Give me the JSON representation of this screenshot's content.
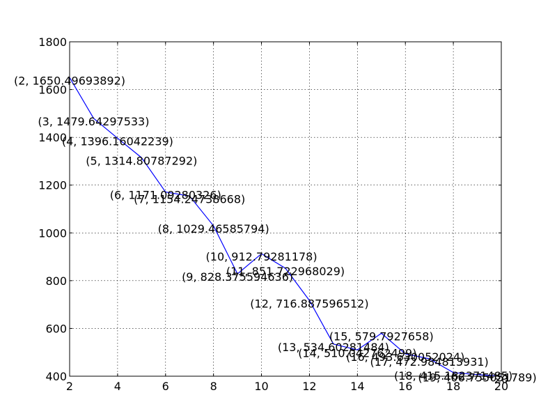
{
  "chart_data": {
    "type": "line",
    "title": "",
    "xlabel": "",
    "ylabel": "",
    "xlim": [
      2,
      20
    ],
    "ylim": [
      400,
      1800
    ],
    "xticks": [
      2,
      4,
      6,
      8,
      10,
      12,
      14,
      16,
      18,
      20
    ],
    "yticks": [
      400,
      600,
      800,
      1000,
      1200,
      1400,
      1600,
      1800
    ],
    "grid": true,
    "legend": "none",
    "line_color": "#0000ff",
    "series": [
      {
        "x": [
          2,
          3,
          4,
          5,
          6,
          7,
          8,
          9,
          10,
          11,
          12,
          13,
          14,
          15,
          16,
          17,
          18,
          19,
          20
        ],
        "y": [
          1650.49693892,
          1479.64297533,
          1396.16042239,
          1314.80787292,
          1171.09280326,
          1154.24738668,
          1029.46585794,
          828.375594636,
          912.79281178,
          851.722968029,
          716.887596512,
          534.60281484,
          510.042762499,
          579.7927658,
          493.630052024,
          472.984813931,
          415.182371485,
          406.755051789,
          400
        ]
      }
    ],
    "annotations": [
      {
        "x": 2,
        "y": 1650.49693892,
        "text": "(2, 1650.49693892)"
      },
      {
        "x": 3,
        "y": 1479.64297533,
        "text": "(3, 1479.64297533)"
      },
      {
        "x": 4,
        "y": 1396.16042239,
        "text": "(4, 1396.16042239)"
      },
      {
        "x": 5,
        "y": 1314.80787292,
        "text": "(5, 1314.80787292)"
      },
      {
        "x": 6,
        "y": 1171.09280326,
        "text": "(6, 1171.09280326)"
      },
      {
        "x": 7,
        "y": 1154.24738668,
        "text": "(7, 1154.24738668)"
      },
      {
        "x": 8,
        "y": 1029.46585794,
        "text": "(8, 1029.46585794)"
      },
      {
        "x": 9,
        "y": 828.375594636,
        "text": "(9, 828.375594636)"
      },
      {
        "x": 10,
        "y": 912.79281178,
        "text": "(10, 912.79281178)"
      },
      {
        "x": 11,
        "y": 851.722968029,
        "text": "(11, 851.722968029)"
      },
      {
        "x": 12,
        "y": 716.887596512,
        "text": "(12, 716.887596512)"
      },
      {
        "x": 13,
        "y": 534.60281484,
        "text": "(13, 534.60281484)"
      },
      {
        "x": 14,
        "y": 510.042762499,
        "text": "(14, 510.042762499)"
      },
      {
        "x": 15,
        "y": 579.7927658,
        "text": "(15, 579.7927658)"
      },
      {
        "x": 16,
        "y": 493.630052024,
        "text": "(16, 493.630052024)"
      },
      {
        "x": 17,
        "y": 472.984813931,
        "text": "(17, 472.984813931)"
      },
      {
        "x": 18,
        "y": 415.182371485,
        "text": "(18, 415.182371485)"
      },
      {
        "x": 19,
        "y": 406.755051789,
        "text": "(19, 406.755051789)"
      },
      {
        "x": 20,
        "y": 400,
        "text": "20"
      }
    ]
  }
}
